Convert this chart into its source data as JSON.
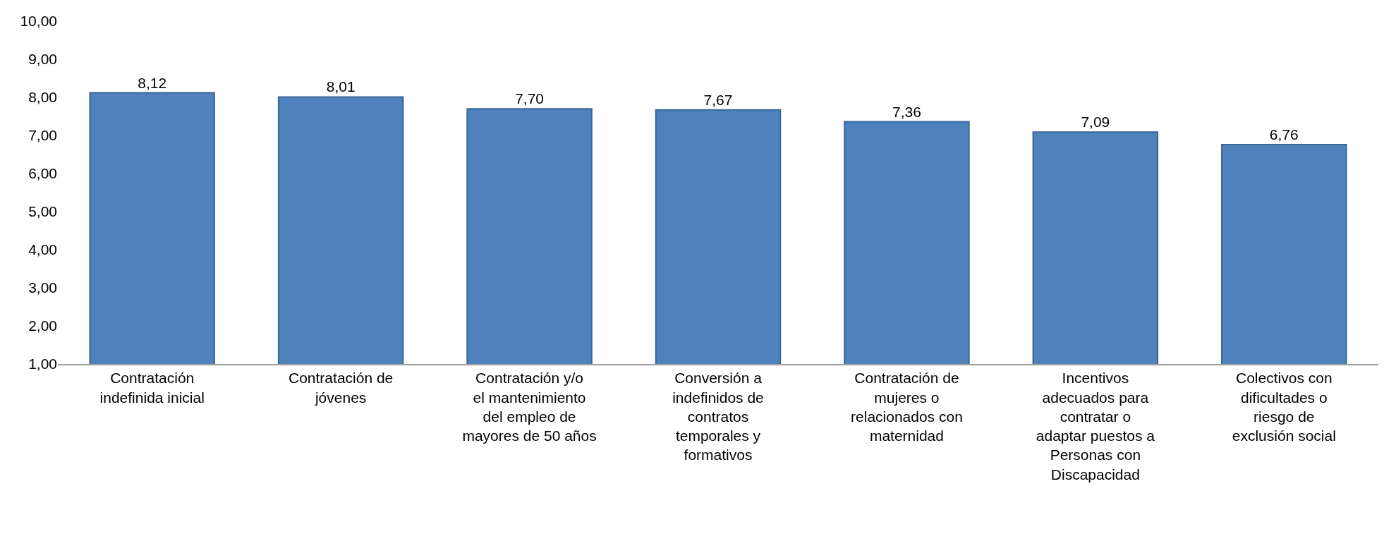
{
  "chart_data": {
    "type": "bar",
    "categories": [
      "Contratación indefinida inicial",
      "Contratación de jóvenes",
      "Contratación y/o el mantenimiento del empleo de mayores de 50 años",
      "Conversión a indefinidos de contratos temporales y formativos",
      "Contratación de mujeres o relacionados con maternidad",
      "Incentivos adecuados para contratar o adaptar puestos a Personas con Discapacidad",
      "Colectivos con dificultades o riesgo de exclusión social"
    ],
    "values": [
      8.12,
      8.01,
      7.7,
      7.67,
      7.36,
      7.09,
      6.76
    ],
    "value_labels": [
      "8,12",
      "8,01",
      "7,70",
      "7,67",
      "7,36",
      "7,09",
      "6,76"
    ],
    "color": "#4f81bd",
    "ylim": [
      1,
      10
    ],
    "yticks": [
      {
        "value": 1,
        "label": "1,00"
      },
      {
        "value": 2,
        "label": "2,00"
      },
      {
        "value": 3,
        "label": "3,00"
      },
      {
        "value": 4,
        "label": "4,00"
      },
      {
        "value": 5,
        "label": "5,00"
      },
      {
        "value": 6,
        "label": "6,00"
      },
      {
        "value": 7,
        "label": "7,00"
      },
      {
        "value": 8,
        "label": "8,00"
      },
      {
        "value": 9,
        "label": "9,00"
      },
      {
        "value": 10,
        "label": "10,00"
      }
    ],
    "grid": false,
    "legend": false
  }
}
